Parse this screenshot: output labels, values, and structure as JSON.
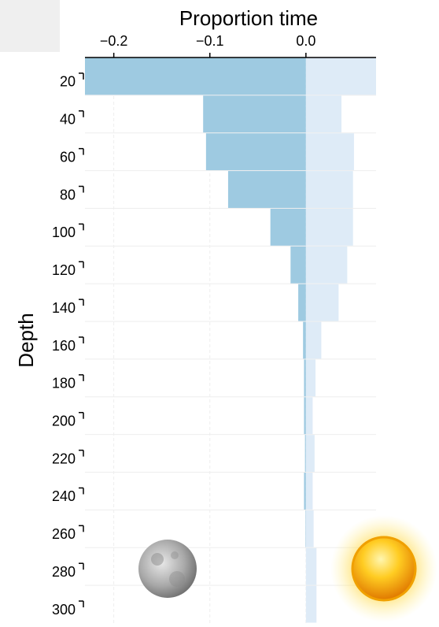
{
  "chart_data": {
    "type": "bar",
    "orientation": "horizontal",
    "title": "Proportion time",
    "y_label": "Depth",
    "categories": [
      "20",
      "40",
      "60",
      "80",
      "100",
      "120",
      "140",
      "160",
      "180",
      "200",
      "220",
      "240",
      "260",
      "280",
      "300"
    ],
    "series": [
      {
        "color": "#9ecae1",
        "values": [
          -0.23,
          -0.107,
          -0.104,
          -0.081,
          -0.037,
          -0.016,
          -0.008,
          -0.003,
          -0.002,
          -0.002,
          -0.001,
          -0.002,
          -0.0005,
          0,
          0
        ]
      },
      {
        "color": "#deebf7",
        "values": [
          0.073,
          0.037,
          0.05,
          0.049,
          0.049,
          0.043,
          0.034,
          0.016,
          0.01,
          0.007,
          0.009,
          0.007,
          0.008,
          0.011,
          0.011
        ]
      }
    ],
    "xlim": [
      -0.23,
      0.073
    ],
    "xticks": [
      {
        "value": -0.2,
        "label": "−0.2"
      },
      {
        "value": -0.1,
        "label": "−0.1"
      },
      {
        "value": 0,
        "label": "0.0"
      }
    ],
    "grid": true
  }
}
